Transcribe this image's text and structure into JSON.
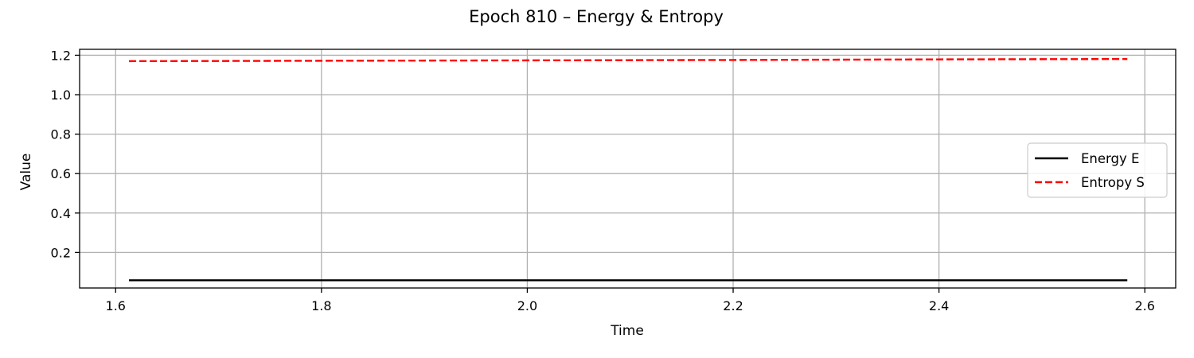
{
  "chart_data": {
    "type": "line",
    "title": "Epoch 810 – Energy & Entropy",
    "xlabel": "Time",
    "ylabel": "Value",
    "xlim": [
      1.565,
      2.63
    ],
    "ylim": [
      0.02,
      1.23
    ],
    "xticks": [
      1.6,
      1.8,
      2.0,
      2.2,
      2.4,
      2.6
    ],
    "xtick_labels": [
      "1.6",
      "1.8",
      "2.0",
      "2.2",
      "2.4",
      "2.6"
    ],
    "yticks": [
      0.2,
      0.4,
      0.6,
      0.8,
      1.0,
      1.2
    ],
    "ytick_labels": [
      "0.2",
      "0.4",
      "0.6",
      "0.8",
      "1.0",
      "1.2"
    ],
    "grid": true,
    "legend_position": "center-right",
    "series": [
      {
        "name": "Energy E",
        "color": "#000000",
        "style": "solid",
        "x": [
          1.613,
          1.8,
          2.0,
          2.2,
          2.4,
          2.583
        ],
        "y": [
          0.059,
          0.059,
          0.059,
          0.059,
          0.059,
          0.059
        ]
      },
      {
        "name": "Entropy S",
        "color": "#ff0000",
        "style": "dashed",
        "x": [
          1.613,
          1.8,
          2.0,
          2.2,
          2.4,
          2.583
        ],
        "y": [
          1.17,
          1.172,
          1.174,
          1.176,
          1.179,
          1.181
        ]
      }
    ]
  }
}
